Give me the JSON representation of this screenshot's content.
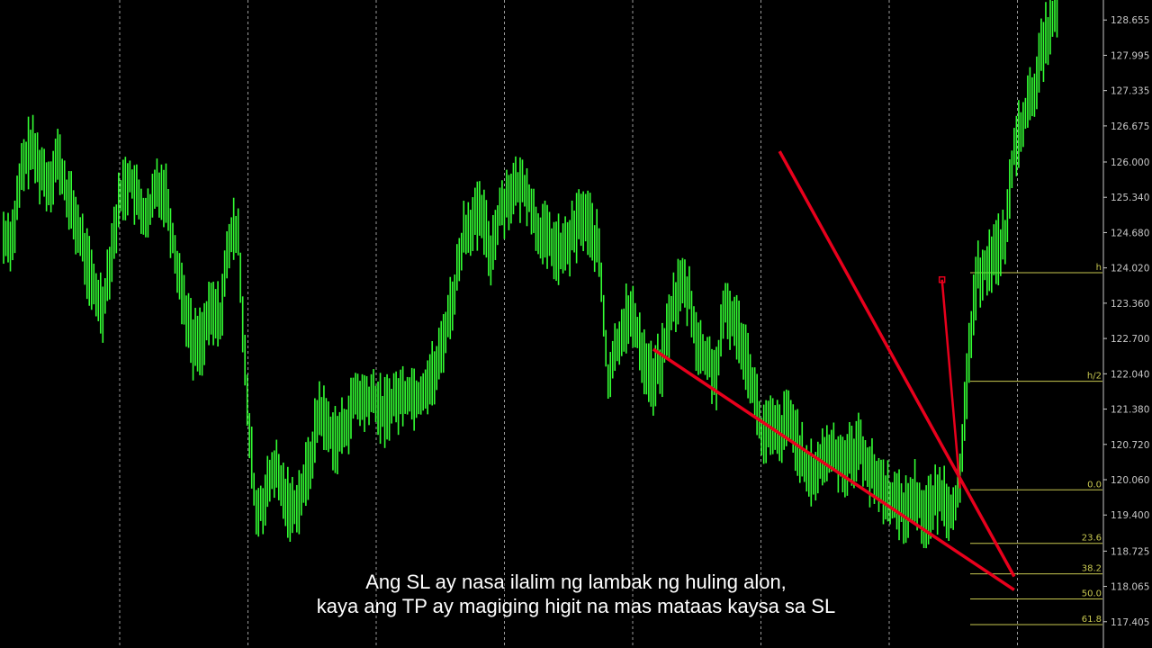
{
  "chart_data": {
    "type": "line",
    "title": "",
    "price_axis": {
      "ticks": [
        "128.655",
        "127.995",
        "127.335",
        "126.675",
        "126.000",
        "125.340",
        "124.680",
        "124.020",
        "123.360",
        "122.700",
        "122.040",
        "121.380",
        "120.720",
        "120.060",
        "119.400",
        "118.725",
        "118.065",
        "117.405"
      ],
      "range": [
        117.0,
        129.2
      ]
    },
    "grid": "vertical dashed",
    "colors": {
      "price": "#33ff33",
      "trendline": "#e8001c",
      "fib": "#c8c850",
      "axis_text": "#c8c8c8",
      "background": "#000000"
    },
    "series": [
      {
        "values": [
          124.6,
          125.8,
          126.3,
          125.9,
          125.6,
          126.1,
          125.4,
          124.9,
          124.3,
          123.6,
          123.3,
          124.4,
          125.4,
          125.7,
          125.2,
          124.9,
          125.6,
          125.4,
          124.3,
          123.4,
          122.6,
          122.7,
          123.2,
          123.1,
          124.5,
          124.8,
          121.4,
          119.4,
          119.7,
          120.3,
          119.8,
          119.5,
          119.8,
          120.4,
          121.4,
          121.0,
          120.8,
          121.1,
          121.6,
          121.5,
          121.6,
          121.3,
          121.5,
          121.6,
          121.7,
          121.6,
          121.9,
          122.1,
          122.9,
          123.6,
          124.7,
          124.9,
          125.0,
          124.3,
          125.1,
          125.4,
          125.5,
          125.5,
          124.8,
          124.6,
          124.4,
          124.3,
          124.6,
          125.0,
          124.8,
          124.3,
          121.9,
          122.6,
          123.1,
          123.0,
          122.3,
          121.9,
          122.3,
          123.2,
          123.7,
          123.5,
          122.5,
          122.3,
          122.0,
          123.3,
          123.0,
          122.6,
          121.9,
          120.9,
          121.0,
          120.9,
          121.2,
          120.8,
          120.1,
          120.2,
          120.5,
          120.6,
          120.4,
          120.5,
          120.7,
          120.2,
          120.0,
          119.8,
          119.6,
          119.5,
          119.8,
          119.4,
          119.6,
          119.8,
          119.5,
          119.9,
          122.5,
          123.9,
          124.1,
          124.3,
          124.6,
          126.2,
          126.8,
          127.2,
          128.0,
          128.6,
          129.0
        ],
        "dates": []
      }
    ],
    "annotations": {
      "trendline_upper": {
        "from": [
          86,
          126.2
        ],
        "to": [
          112,
          118.25
        ]
      },
      "trendline_lower": {
        "from": [
          72,
          122.5
        ],
        "to": [
          112,
          118.0
        ]
      },
      "stop_loss_marker": {
        "from": [
          104,
          123.8
        ],
        "to": [
          106,
          119.9
        ]
      },
      "fibonacci_levels": [
        {
          "label": "h",
          "price": 123.93
        },
        {
          "label": "h/2",
          "price": 121.9
        },
        {
          "label": "0.0",
          "price": 119.87
        },
        {
          "label": "23.6",
          "price": 118.87
        },
        {
          "label": "38.2",
          "price": 118.3
        },
        {
          "label": "50.0",
          "price": 117.83
        },
        {
          "label": "61.8",
          "price": 117.35
        }
      ]
    }
  },
  "subtitles": {
    "line1": "Ang SL ay nasa ilalim ng lambak ng huling alon,",
    "line2": "kaya ang TP ay magiging higit na mas mataas kaysa sa SL"
  }
}
